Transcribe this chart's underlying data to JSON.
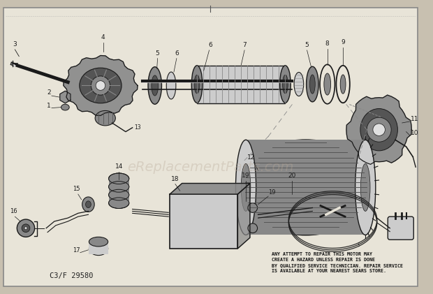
{
  "fig_bg": "#c8c0b0",
  "inner_bg": "#e8e4d8",
  "border_color": "#666666",
  "watermark_text": "eReplacementParts.com",
  "watermark_color": "#b8a898",
  "bottom_code": "C3/F 29580",
  "warning_text": "ANY ATTEMPT TO REPAIR THIS MOTOR MAY\nCREATE A HAZARD UNLESS REPAIR IS DONE\nBY QUALIFIED SERVICE TECHNICIAN. REPAIR SERVICE\nIS AVAILABLE AT YOUR NEAREST SEARS STORE.",
  "line_color": "#1a1a1a",
  "fill_dark": "#555555",
  "fill_mid": "#888888",
  "fill_light": "#cccccc",
  "fill_white": "#e0e0e0"
}
